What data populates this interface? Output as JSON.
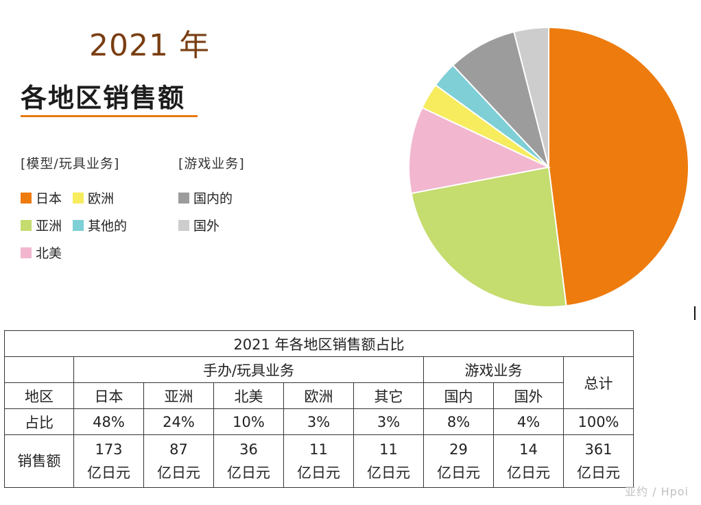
{
  "header": {
    "year": "2021 年",
    "title": "各地区销售额"
  },
  "legend": {
    "group_toys": "[模型/玩具业务]",
    "group_games": "[游戏业务]",
    "items": [
      {
        "label": "日本",
        "color": "#ee7b0e"
      },
      {
        "label": "欧洲",
        "color": "#f6ec5e"
      },
      {
        "label": "亚洲",
        "color": "#c5dc6e"
      },
      {
        "label": "其他的",
        "color": "#7ecfd6"
      },
      {
        "label": "北美",
        "color": "#f2b6cf"
      },
      {
        "label": "国内的",
        "color": "#9c9c9c"
      },
      {
        "label": "国外",
        "color": "#cdcdcd"
      }
    ]
  },
  "chart_data": {
    "type": "pie",
    "start_angle_deg": 0,
    "direction": "clockwise",
    "slices": [
      {
        "label": "日本",
        "value": 48,
        "color": "#ee7b0e"
      },
      {
        "label": "亚洲",
        "value": 24,
        "color": "#c5dc6e"
      },
      {
        "label": "北美",
        "value": 10,
        "color": "#f2b6cf"
      },
      {
        "label": "欧洲",
        "value": 3,
        "color": "#f6ec5e"
      },
      {
        "label": "其他的",
        "value": 3,
        "color": "#7ecfd6"
      },
      {
        "label": "国内的",
        "value": 8,
        "color": "#9c9c9c"
      },
      {
        "label": "国外",
        "value": 4,
        "color": "#cdcdcd"
      }
    ]
  },
  "table": {
    "caption": "2021 年各地区销售额占比",
    "group_toys": "手办/玩具业务",
    "group_games": "游戏业务",
    "total_header": "总计",
    "region_header": "地区",
    "share_header": "占比",
    "sales_header": "销售额",
    "unit": "亿日元",
    "columns": [
      {
        "region": "日本",
        "share": "48%",
        "sales": "173"
      },
      {
        "region": "亚洲",
        "share": "24%",
        "sales": "87"
      },
      {
        "region": "北美",
        "share": "10%",
        "sales": "36"
      },
      {
        "region": "欧洲",
        "share": "3%",
        "sales": "11"
      },
      {
        "region": "其它",
        "share": "3%",
        "sales": "11"
      },
      {
        "region": "国内",
        "share": "8%",
        "sales": "29"
      },
      {
        "region": "国外",
        "share": "4%",
        "sales": "14"
      }
    ],
    "total": {
      "share": "100%",
      "sales": "361"
    }
  },
  "watermark": "亚约 / Hpoi"
}
